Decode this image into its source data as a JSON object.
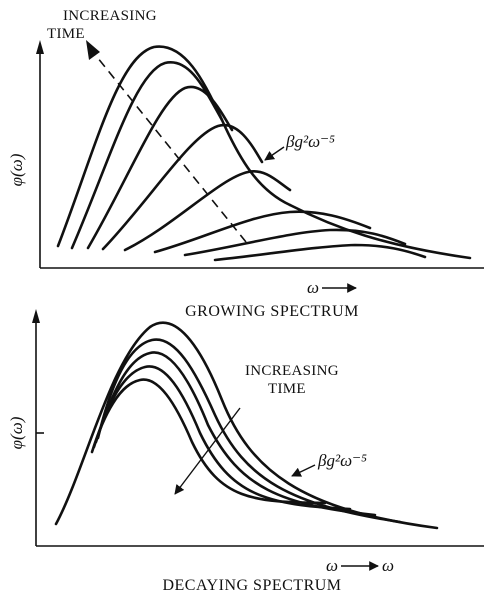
{
  "top_panel": {
    "annotation_line1": "INCREASING",
    "annotation_line2": "TIME",
    "y_label": "φ(ω)",
    "x_label": "ω",
    "envelope_label": "βg²ω⁻⁵",
    "caption": "GROWING SPECTRUM"
  },
  "bottom_panel": {
    "annotation_line1": "INCREASING",
    "annotation_line2": "TIME",
    "y_label": "φ(ω)",
    "x_label": "ω",
    "x_label_end": "ω",
    "envelope_label": "βg²ω⁻⁵",
    "caption": "DECAYING SPECTRUM"
  }
}
